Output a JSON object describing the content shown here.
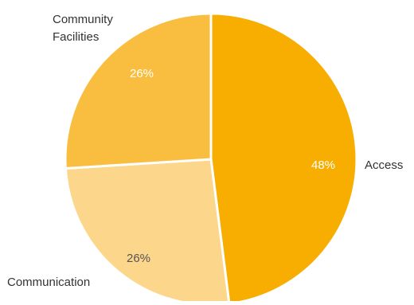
{
  "chart_data": {
    "type": "pie",
    "title": "",
    "start_angle_deg": 0,
    "direction": "clockwise",
    "slices": [
      {
        "label": "Access",
        "value": 48,
        "display": "48%",
        "color": "#F7AE00",
        "text_color": "#ffffff"
      },
      {
        "label": "Communication",
        "value": 26,
        "display": "26%",
        "color": "#FCD68B",
        "text_color": "#555555"
      },
      {
        "label": "Community Facilities",
        "label_lines": [
          "Community",
          "Facilities"
        ],
        "value": 26,
        "display": "26%",
        "color": "#F9BE3F",
        "text_color": "#ffffff"
      }
    ]
  }
}
